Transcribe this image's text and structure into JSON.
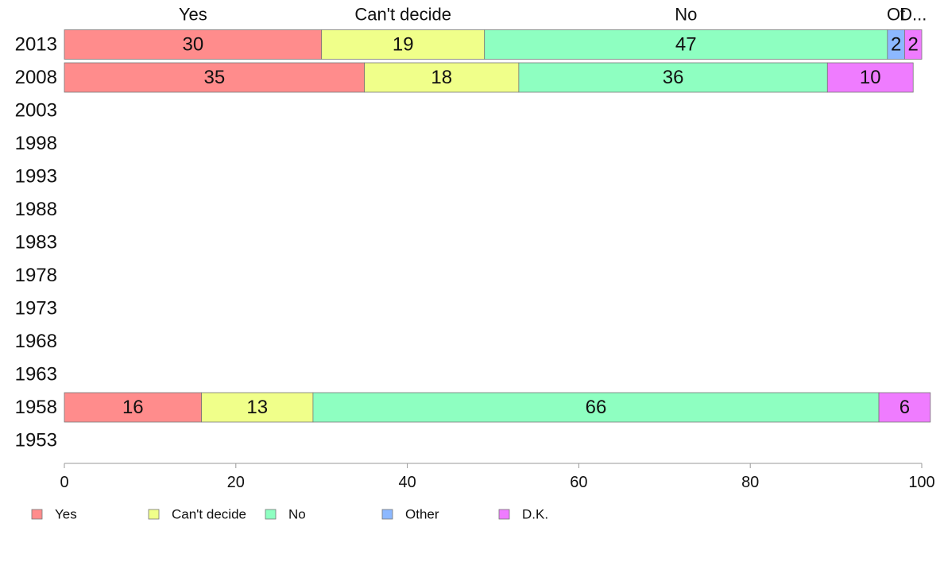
{
  "chart_data": {
    "type": "bar",
    "orientation": "horizontal",
    "stacked": true,
    "categories": [
      "2013",
      "2008",
      "2003",
      "1998",
      "1993",
      "1988",
      "1983",
      "1978",
      "1973",
      "1968",
      "1963",
      "1958",
      "1953"
    ],
    "series": [
      {
        "name": "Yes",
        "color": "#ff8c8c",
        "values": [
          30,
          35,
          null,
          null,
          null,
          null,
          null,
          null,
          null,
          null,
          null,
          16,
          null
        ]
      },
      {
        "name": "Can't decide",
        "color": "#f0ff8a",
        "values": [
          19,
          18,
          null,
          null,
          null,
          null,
          null,
          null,
          null,
          null,
          null,
          13,
          null
        ]
      },
      {
        "name": "No",
        "color": "#8effc1",
        "values": [
          47,
          36,
          null,
          null,
          null,
          null,
          null,
          null,
          null,
          null,
          null,
          66,
          null
        ]
      },
      {
        "name": "Other",
        "color": "#8cb8ff",
        "values": [
          2,
          null,
          null,
          null,
          null,
          null,
          null,
          null,
          null,
          null,
          null,
          null,
          null
        ]
      },
      {
        "name": "D.K.",
        "color": "#ef7cff",
        "values": [
          2,
          10,
          null,
          null,
          null,
          null,
          null,
          null,
          null,
          null,
          null,
          6,
          null
        ]
      }
    ],
    "top_labels": [
      "Yes",
      "Can't decide",
      "No",
      "Ot",
      "D..."
    ],
    "xlim": [
      0,
      100
    ],
    "xticks": [
      "0",
      "20",
      "40",
      "60",
      "80",
      "100"
    ],
    "legend_position": "bottom",
    "grid": false
  }
}
